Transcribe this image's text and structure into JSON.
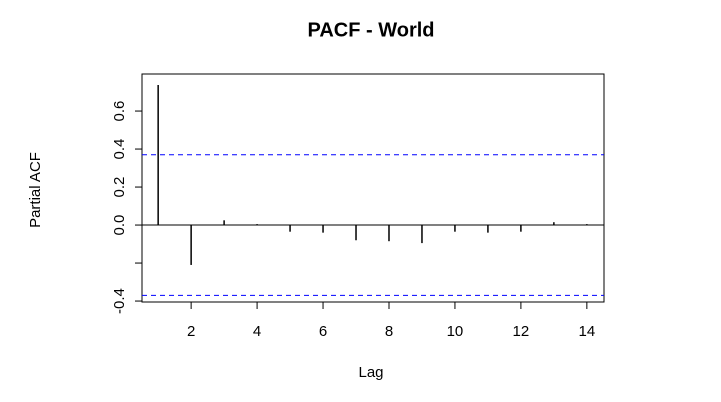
{
  "chart_data": {
    "type": "pacf",
    "title": "PACF - World",
    "xlabel": "Lag",
    "ylabel": "Partial ACF",
    "x": [
      1,
      2,
      3,
      4,
      5,
      6,
      7,
      8,
      9,
      10,
      11,
      12,
      13,
      14
    ],
    "values": [
      0.737,
      -0.21,
      0.025,
      0.005,
      -0.035,
      -0.04,
      -0.08,
      -0.085,
      -0.095,
      -0.035,
      -0.04,
      -0.035,
      0.015,
      0.005
    ],
    "color": "#000000",
    "ci_lines": [
      0.37,
      -0.37
    ],
    "ci_color": "#0000ff",
    "xlim": [
      0.51,
      14.52
    ],
    "ylim": [
      -0.405,
      0.795
    ],
    "xticks": [
      2,
      4,
      6,
      8,
      10,
      12,
      14
    ],
    "yticks": [
      -0.4,
      {
        "value": -0.2,
        "label": null
      },
      {
        "value": 0,
        "label": "0.0"
      },
      0.2,
      0.4,
      0.6
    ]
  }
}
